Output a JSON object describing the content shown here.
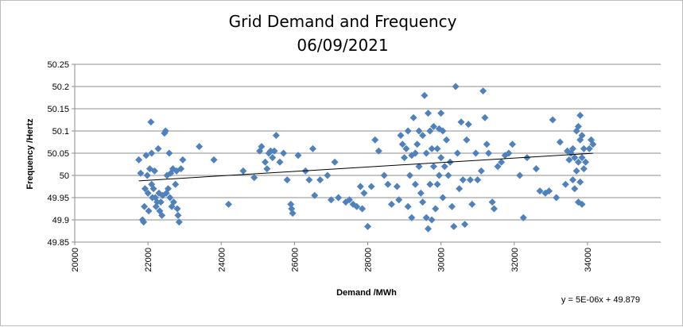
{
  "chart_data": {
    "type": "scatter",
    "title": "Grid Demand and Frequency",
    "subtitle": "06/09/2021",
    "xlabel": "Demand /MWh",
    "ylabel": "Frequency /Hertz",
    "xlim": [
      20000,
      36000
    ],
    "ylim": [
      49.85,
      50.25
    ],
    "xticks": [
      "20000",
      "22000",
      "24000",
      "26000",
      "28000",
      "30000",
      "32000",
      "34000"
    ],
    "yticks": [
      "49.85",
      "49.9",
      "49.95",
      "50",
      "50.05",
      "50.1",
      "50.15",
      "50.2",
      "50.25"
    ],
    "grid": "horizontal",
    "legend": "none",
    "marker_color": "#4f81bd",
    "trendline": {
      "slope": 5e-06,
      "intercept": 49.879,
      "label": "y = 5E-06x + 49.879",
      "color": "#000000"
    },
    "points": [
      [
        21750,
        50.035
      ],
      [
        21800,
        50.005
      ],
      [
        21850,
        49.9
      ],
      [
        21880,
        49.895
      ],
      [
        21900,
        49.93
      ],
      [
        21920,
        49.97
      ],
      [
        21950,
        50.045
      ],
      [
        21980,
        50.0
      ],
      [
        22000,
        49.96
      ],
      [
        22020,
        49.92
      ],
      [
        22050,
        50.015
      ],
      [
        22080,
        50.12
      ],
      [
        22100,
        50.05
      ],
      [
        22100,
        49.98
      ],
      [
        22120,
        49.95
      ],
      [
        22150,
        49.97
      ],
      [
        22180,
        50.01
      ],
      [
        22200,
        49.95
      ],
      [
        22220,
        49.93
      ],
      [
        22250,
        49.94
      ],
      [
        22280,
        50.06
      ],
      [
        22300,
        49.96
      ],
      [
        22320,
        49.92
      ],
      [
        22350,
        49.94
      ],
      [
        22380,
        49.91
      ],
      [
        22400,
        49.955
      ],
      [
        22450,
        50.095
      ],
      [
        22480,
        50.1
      ],
      [
        22500,
        49.96
      ],
      [
        22520,
        50.0
      ],
      [
        22550,
        49.97
      ],
      [
        22580,
        50.05
      ],
      [
        22600,
        49.95
      ],
      [
        22620,
        50.005
      ],
      [
        22650,
        49.93
      ],
      [
        22680,
        50.015
      ],
      [
        22700,
        49.94
      ],
      [
        22750,
        49.98
      ],
      [
        22780,
        50.01
      ],
      [
        22800,
        49.925
      ],
      [
        22820,
        49.91
      ],
      [
        22850,
        49.895
      ],
      [
        22900,
        50.015
      ],
      [
        22950,
        50.035
      ],
      [
        23400,
        50.065
      ],
      [
        23800,
        50.035
      ],
      [
        24200,
        49.935
      ],
      [
        24600,
        50.01
      ],
      [
        24900,
        49.995
      ],
      [
        25050,
        50.055
      ],
      [
        25100,
        50.065
      ],
      [
        25200,
        50.03
      ],
      [
        25250,
        50.015
      ],
      [
        25300,
        50.05
      ],
      [
        25350,
        50.055
      ],
      [
        25400,
        50.04
      ],
      [
        25450,
        50.055
      ],
      [
        25500,
        50.09
      ],
      [
        25600,
        50.03
      ],
      [
        25700,
        50.05
      ],
      [
        25800,
        49.99
      ],
      [
        25900,
        49.935
      ],
      [
        25920,
        49.925
      ],
      [
        25950,
        49.915
      ],
      [
        26100,
        50.045
      ],
      [
        26300,
        50.01
      ],
      [
        26400,
        49.99
      ],
      [
        26500,
        50.06
      ],
      [
        26550,
        49.955
      ],
      [
        26700,
        49.99
      ],
      [
        26900,
        50.0
      ],
      [
        27000,
        49.945
      ],
      [
        27100,
        50.03
      ],
      [
        27200,
        49.95
      ],
      [
        27400,
        49.94
      ],
      [
        27500,
        49.945
      ],
      [
        27600,
        49.935
      ],
      [
        27700,
        49.93
      ],
      [
        27800,
        49.975
      ],
      [
        27850,
        49.925
      ],
      [
        27900,
        49.96
      ],
      [
        28000,
        49.885
      ],
      [
        28100,
        49.975
      ],
      [
        28200,
        50.08
      ],
      [
        28300,
        50.055
      ],
      [
        28450,
        50.0
      ],
      [
        28550,
        49.98
      ],
      [
        28650,
        49.935
      ],
      [
        28800,
        49.975
      ],
      [
        28850,
        49.945
      ],
      [
        28900,
        50.09
      ],
      [
        28950,
        50.07
      ],
      [
        29000,
        50.04
      ],
      [
        29050,
        50.06
      ],
      [
        29100,
        50.1
      ],
      [
        29100,
        49.93
      ],
      [
        29150,
        50.0
      ],
      [
        29200,
        50.045
      ],
      [
        29200,
        49.905
      ],
      [
        29250,
        50.13
      ],
      [
        29300,
        50.05
      ],
      [
        29300,
        49.98
      ],
      [
        29350,
        50.07
      ],
      [
        29400,
        50.1
      ],
      [
        29400,
        50.02
      ],
      [
        29450,
        49.96
      ],
      [
        29500,
        50.09
      ],
      [
        29500,
        49.94
      ],
      [
        29550,
        50.18
      ],
      [
        29600,
        50.05
      ],
      [
        29600,
        49.905
      ],
      [
        29650,
        50.14
      ],
      [
        29650,
        49.88
      ],
      [
        29700,
        50.1
      ],
      [
        29700,
        49.98
      ],
      [
        29750,
        50.06
      ],
      [
        29750,
        49.9
      ],
      [
        29800,
        50.11
      ],
      [
        29800,
        50.02
      ],
      [
        29850,
        49.925
      ],
      [
        29900,
        50.06
      ],
      [
        29900,
        49.98
      ],
      [
        29950,
        50.105
      ],
      [
        29950,
        50.0
      ],
      [
        30000,
        50.14
      ],
      [
        30000,
        50.04
      ],
      [
        30050,
        50.1
      ],
      [
        30050,
        49.95
      ],
      [
        30100,
        50.02
      ],
      [
        30150,
        50.08
      ],
      [
        30200,
        50.0
      ],
      [
        30250,
        50.03
      ],
      [
        30300,
        49.93
      ],
      [
        30350,
        49.885
      ],
      [
        30400,
        50.2
      ],
      [
        30450,
        50.05
      ],
      [
        30500,
        49.97
      ],
      [
        30550,
        50.12
      ],
      [
        30600,
        49.99
      ],
      [
        30650,
        49.89
      ],
      [
        30700,
        50.08
      ],
      [
        30750,
        50.115
      ],
      [
        30800,
        49.99
      ],
      [
        30850,
        49.935
      ],
      [
        30950,
        50.05
      ],
      [
        31000,
        49.99
      ],
      [
        31100,
        50.01
      ],
      [
        31150,
        50.19
      ],
      [
        31200,
        50.13
      ],
      [
        31250,
        50.07
      ],
      [
        31300,
        50.05
      ],
      [
        31400,
        49.94
      ],
      [
        31450,
        49.925
      ],
      [
        31550,
        50.02
      ],
      [
        31650,
        50.03
      ],
      [
        31750,
        50.045
      ],
      [
        31850,
        50.05
      ],
      [
        31950,
        50.07
      ],
      [
        32150,
        50.0
      ],
      [
        32250,
        49.905
      ],
      [
        32350,
        50.04
      ],
      [
        32600,
        50.015
      ],
      [
        32700,
        49.965
      ],
      [
        32850,
        49.96
      ],
      [
        32950,
        49.965
      ],
      [
        33050,
        50.125
      ],
      [
        33150,
        49.95
      ],
      [
        33250,
        50.075
      ],
      [
        33400,
        49.98
      ],
      [
        33450,
        50.055
      ],
      [
        33500,
        50.035
      ],
      [
        33550,
        50.05
      ],
      [
        33600,
        50.06
      ],
      [
        33600,
        49.99
      ],
      [
        33650,
        50.04
      ],
      [
        33650,
        49.97
      ],
      [
        33700,
        50.1
      ],
      [
        33700,
        50.01
      ],
      [
        33750,
        50.11
      ],
      [
        33750,
        50.03
      ],
      [
        33750,
        49.94
      ],
      [
        33800,
        50.135
      ],
      [
        33800,
        50.08
      ],
      [
        33800,
        49.985
      ],
      [
        33850,
        50.09
      ],
      [
        33850,
        50.04
      ],
      [
        33850,
        49.935
      ],
      [
        33900,
        50.06
      ],
      [
        33900,
        50.015
      ],
      [
        33950,
        50.03
      ],
      [
        34050,
        50.06
      ],
      [
        34100,
        50.08
      ],
      [
        34150,
        50.07
      ]
    ]
  }
}
